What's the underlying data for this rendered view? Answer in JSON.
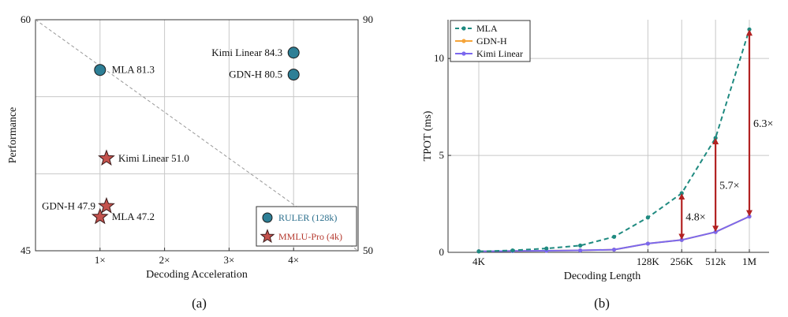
{
  "chart_data": [
    {
      "type": "scatter",
      "panel_label": "(a)",
      "xlabel": "Decoding Acceleration",
      "ylabel": "Performance",
      "xlim": [
        0,
        5
      ],
      "x_ticks": [
        {
          "v": 1,
          "label": "1×"
        },
        {
          "v": 2,
          "label": "2×"
        },
        {
          "v": 3,
          "label": "3×"
        },
        {
          "v": 4,
          "label": "4×"
        }
      ],
      "left_axis": {
        "min": 45,
        "max": 60,
        "ticks": [
          {
            "v": 45,
            "label": "45"
          },
          {
            "v": 60,
            "label": "60"
          }
        ]
      },
      "right_axis": {
        "min": 50,
        "max": 90,
        "ticks": [
          {
            "v": 50,
            "label": "50"
          },
          {
            "v": 90,
            "label": "90"
          }
        ]
      },
      "series": [
        {
          "name": "RULER (128k)",
          "axis": "right",
          "marker": "circle",
          "color": "#2e7f96",
          "points": [
            {
              "x": 1.0,
              "y": 81.3,
              "label": "MLA 81.3",
              "label_side": "right"
            },
            {
              "x": 4.0,
              "y": 84.3,
              "label": "Kimi Linear 84.3",
              "label_side": "left"
            },
            {
              "x": 4.0,
              "y": 80.5,
              "label": "GDN-H 80.5",
              "label_side": "left"
            }
          ]
        },
        {
          "name": "MMLU-Pro (4k)",
          "axis": "left",
          "marker": "star",
          "color": "#c4524d",
          "points": [
            {
              "x": 1.1,
              "y": 51.0,
              "label": "Kimi Linear 51.0",
              "label_side": "right"
            },
            {
              "x": 1.1,
              "y": 47.9,
              "label": "GDN-H 47.9",
              "label_side": "left"
            },
            {
              "x": 1.0,
              "y": 47.2,
              "label": "MLA 47.2",
              "label_side": "right"
            }
          ]
        }
      ],
      "legend_position": "bottom-right",
      "legend_text_colors": [
        "#2a6e8c",
        "#b53a2f"
      ]
    },
    {
      "type": "line",
      "panel_label": "(b)",
      "xlabel": "Decoding Length",
      "ylabel": "TPOT (ms)",
      "ylim": [
        0,
        12
      ],
      "y_ticks": [
        {
          "v": 0,
          "label": "0"
        },
        {
          "v": 5,
          "label": "5"
        },
        {
          "v": 10,
          "label": "10"
        }
      ],
      "x_ticks": [
        {
          "v": 0,
          "label": "4K"
        },
        {
          "v": 5,
          "label": "128K"
        },
        {
          "v": 6,
          "label": "256K"
        },
        {
          "v": 7,
          "label": "512k"
        },
        {
          "v": 8,
          "label": "1M"
        }
      ],
      "x_values": [
        0,
        1,
        2,
        3,
        4,
        5,
        6,
        7,
        8
      ],
      "series": [
        {
          "name": "MLA",
          "color": "#1f8a80",
          "dash": "dashed",
          "values": [
            0.05,
            0.1,
            0.2,
            0.35,
            0.8,
            1.8,
            3.05,
            5.9,
            11.5
          ]
        },
        {
          "name": "GDN-H",
          "color": "#f5a43a",
          "dash": "solid",
          "values": [
            0.05,
            0.07,
            0.08,
            0.1,
            0.14,
            0.45,
            0.64,
            1.05,
            1.85
          ]
        },
        {
          "name": "Kimi Linear",
          "color": "#7b68ee",
          "dash": "solid",
          "values": [
            0.05,
            0.07,
            0.08,
            0.1,
            0.14,
            0.45,
            0.64,
            1.05,
            1.85
          ]
        }
      ],
      "annotations": [
        {
          "x": 6,
          "from": 3.05,
          "to": 0.64,
          "label": "4.8×"
        },
        {
          "x": 7,
          "from": 5.9,
          "to": 1.05,
          "label": "5.7×"
        },
        {
          "x": 8,
          "from": 11.5,
          "to": 1.85,
          "label": "6.3×"
        }
      ],
      "arrow_color": "#b22222",
      "legend_position": "top-left"
    }
  ]
}
